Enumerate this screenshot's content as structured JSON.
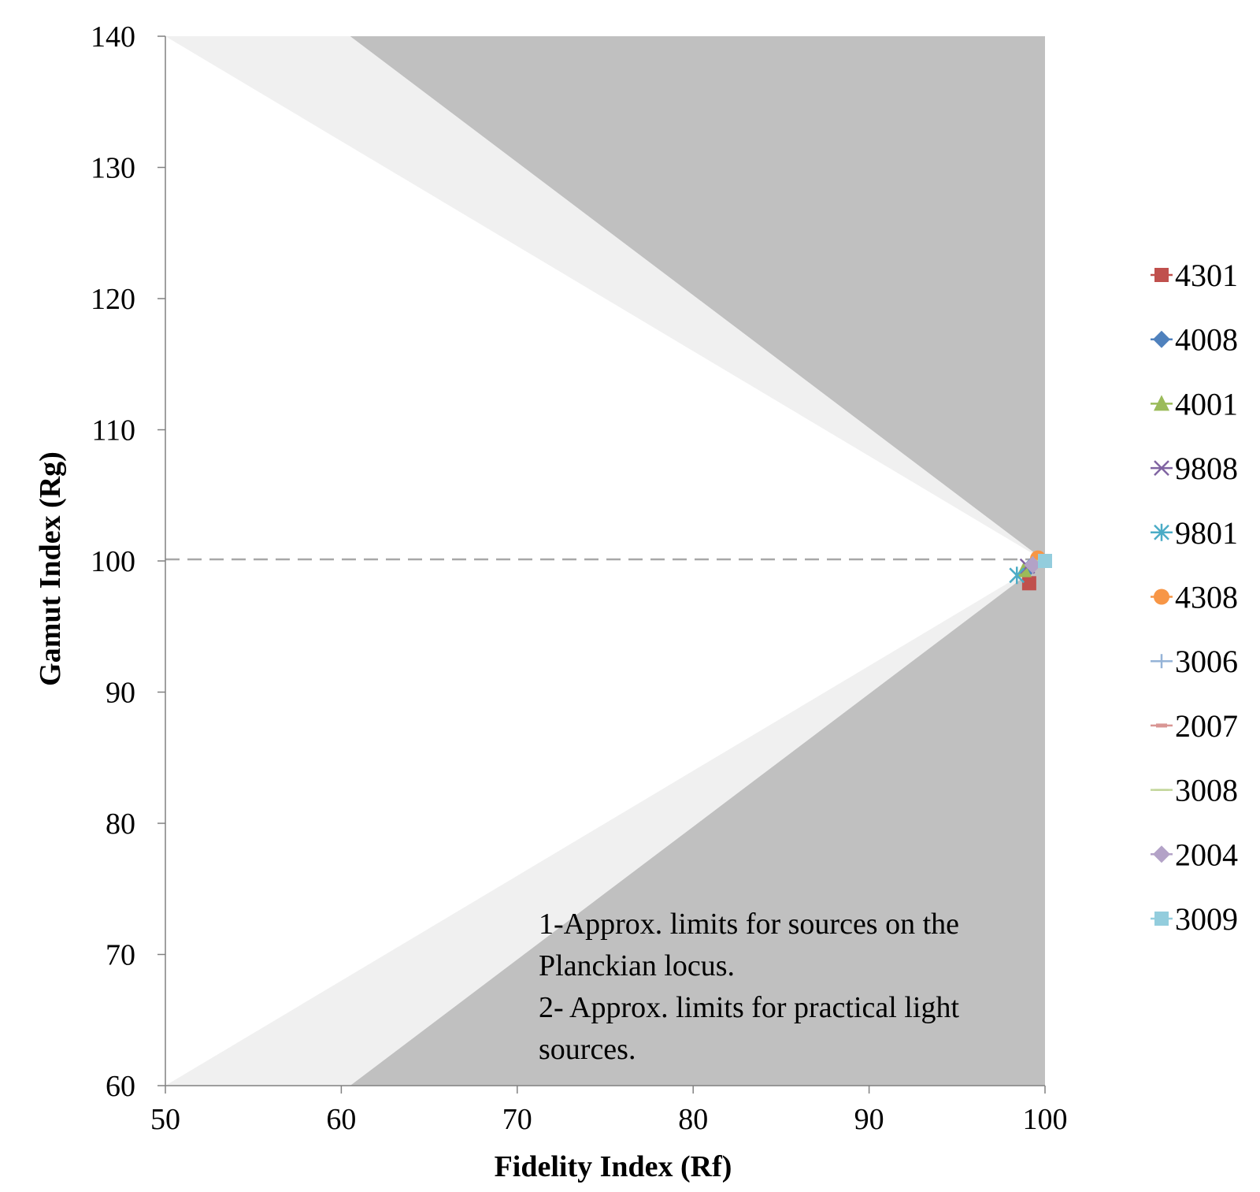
{
  "chart_data": {
    "type": "scatter",
    "xlabel": "Fidelity Index (Rf)",
    "ylabel": "Gamut Index (Rg)",
    "xlim": [
      50,
      100
    ],
    "ylim": [
      60,
      140
    ],
    "xticks": [
      50,
      60,
      70,
      80,
      90,
      100
    ],
    "yticks": [
      60,
      70,
      80,
      90,
      100,
      110,
      120,
      130,
      140
    ],
    "grid": false,
    "legend_position": "right",
    "reference_line": {
      "y": 100,
      "style": "dashed"
    },
    "regions": {
      "planckian_limits": {
        "upper": [
          [
            50,
            140
          ],
          [
            100,
            100
          ]
        ],
        "lower": [
          [
            50,
            60
          ],
          [
            100,
            100
          ]
        ]
      },
      "practical_limits": {
        "upper": [
          [
            60.5,
            140
          ],
          [
            100,
            100
          ]
        ],
        "lower": [
          [
            60.5,
            60
          ],
          [
            100,
            100
          ]
        ]
      }
    },
    "annotation": [
      "1-Approx. limits for sources on the",
      "Planckian locus.",
      "2- Approx. limits for practical light",
      "sources."
    ],
    "series": [
      {
        "name": "4301",
        "marker": "square",
        "color": "#C0504D",
        "x": 99.1,
        "y": 98.3
      },
      {
        "name": "4008",
        "marker": "diamond",
        "color": "#4F81BD",
        "x": 99.2,
        "y": 99.6
      },
      {
        "name": "4001",
        "marker": "triangle",
        "color": "#9BBB59",
        "x": 98.8,
        "y": 99.3
      },
      {
        "name": "9808",
        "marker": "x",
        "color": "#8064A2",
        "x": 99.0,
        "y": 99.6
      },
      {
        "name": "9801",
        "marker": "star",
        "color": "#4BACC6",
        "x": 98.4,
        "y": 98.9
      },
      {
        "name": "4308",
        "marker": "circle",
        "color": "#F79646",
        "x": 99.6,
        "y": 100.2
      },
      {
        "name": "3006",
        "marker": "plus",
        "color": "#95B3D7",
        "x": 99.3,
        "y": 99.8
      },
      {
        "name": "2007",
        "marker": "dash",
        "color": "#D99694",
        "x": 99.4,
        "y": 99.9
      },
      {
        "name": "3008",
        "marker": "line",
        "color": "#C3D69B",
        "x": 99.5,
        "y": 100.0
      },
      {
        "name": "2004",
        "marker": "diamond",
        "color": "#B3A2C7",
        "x": 99.3,
        "y": 99.7
      },
      {
        "name": "3009",
        "marker": "square",
        "color": "#93CDDD",
        "x": 100.0,
        "y": 100.0
      }
    ]
  }
}
